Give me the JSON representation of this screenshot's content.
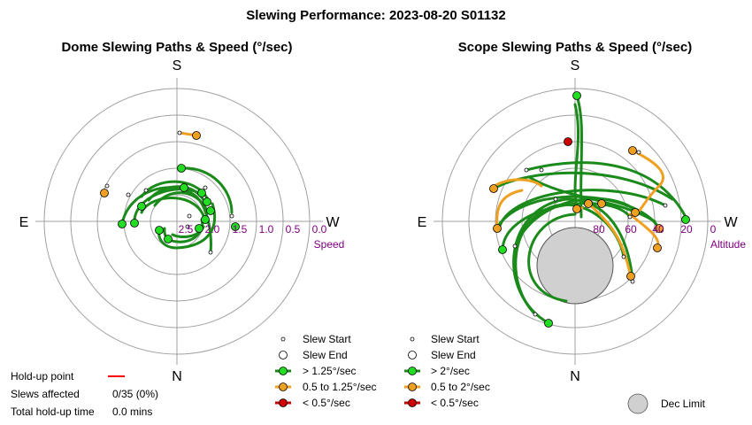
{
  "title": "Slewing Performance: 2023-08-20 S01132",
  "charts": {
    "dome": {
      "title": "Dome Slewing Paths & Speed (°/sec)",
      "compass": {
        "top": "S",
        "bottom": "N",
        "left": "E",
        "right": "W"
      },
      "radial_label": "Speed",
      "radial_ticks": [
        "2.5",
        "2.0",
        "1.5",
        "1.0",
        "0.5",
        "0.0"
      ]
    },
    "scope": {
      "title": "Scope Slewing Paths & Speed (°/sec)",
      "compass": {
        "top": "S",
        "bottom": "N",
        "left": "E",
        "right": "W"
      },
      "radial_label": "Altitude",
      "radial_ticks": [
        "80",
        "60",
        "40",
        "20",
        "0"
      ]
    }
  },
  "legend_dome": {
    "start": "Slew Start",
    "end": "Slew End",
    "fast": "> 1.25°/sec",
    "medium": "0.5 to 1.25°/sec",
    "slow": "< 0.5°/sec"
  },
  "legend_scope": {
    "start": "Slew Start",
    "end": "Slew End",
    "fast": "> 2°/sec",
    "medium": "0.5 to 2°/sec",
    "slow": "< 0.5°/sec",
    "dec_limit": "Dec Limit"
  },
  "holdup": {
    "point_label": "Hold-up point",
    "slews_label": "Slews affected",
    "slews_value": "0/35 (0%)",
    "total_label": "Total hold-up time",
    "total_value": "0.0 mins"
  },
  "colors": {
    "fast": "#1a8a1a",
    "fast_fill": "#22dd22",
    "medium": "#f0a020",
    "medium_fill": "#f0a020",
    "slow": "#cc0000",
    "tick_label": "#800080",
    "grid": "#a0a0a0",
    "dec_limit_fill": "#d0d0d0"
  },
  "chart_data": [
    {
      "type": "polar",
      "title": "Dome Slewing Paths & Speed (°/sec)",
      "radial_axis": {
        "label": "Speed",
        "ticks": [
          2.5,
          2.0,
          1.5,
          1.0,
          0.5,
          0.0
        ]
      },
      "angular_axis": {
        "top": "S",
        "bottom": "N",
        "left": "E",
        "right": "W"
      }
    },
    {
      "type": "polar",
      "title": "Scope Slewing Paths & Speed (°/sec)",
      "radial_axis": {
        "label": "Altitude",
        "ticks": [
          80,
          60,
          40,
          20,
          0
        ]
      },
      "angular_axis": {
        "top": "S",
        "bottom": "N",
        "left": "E",
        "right": "W"
      }
    }
  ]
}
